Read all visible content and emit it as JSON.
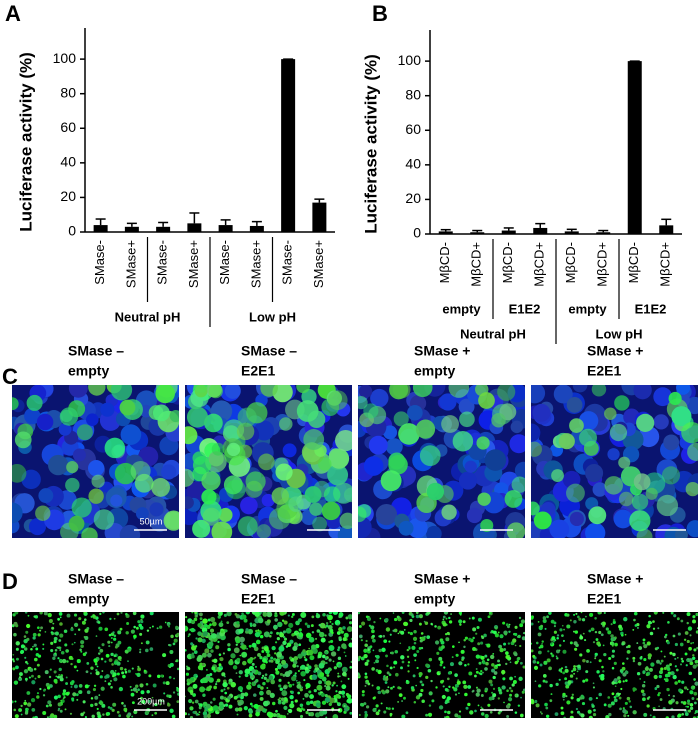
{
  "chart_data": [
    {
      "type": "bar",
      "panel": "A",
      "y_label": "Luciferase activity (%)",
      "categories": [
        "SMase-",
        "SMase+",
        "SMase-",
        "SMase+",
        "SMase-",
        "SMase+",
        "SMase-",
        "SMase+"
      ],
      "values": [
        4,
        3,
        3,
        5,
        4,
        3.5,
        100,
        17
      ],
      "errors": [
        3.5,
        2,
        2.5,
        6,
        3,
        2.5,
        0,
        2
      ],
      "groups": [
        "Neutral pH",
        "Low pH"
      ],
      "color": "#000000",
      "ylim": [
        0,
        118
      ],
      "yticks": [
        0,
        20,
        40,
        60,
        80,
        100
      ]
    },
    {
      "type": "bar",
      "panel": "B",
      "y_label": "Luciferase activity (%)",
      "categories": [
        "MβCD-",
        "MβCD+",
        "MβCD-",
        "MβCD+",
        "MβCD-",
        "MβCD+",
        "MβCD-",
        "MβCD+"
      ],
      "values": [
        1.5,
        1,
        2,
        3.5,
        1.5,
        1,
        100,
        5
      ],
      "errors": [
        1,
        1,
        1.5,
        2.5,
        1.2,
        1,
        0,
        3.5
      ],
      "subgroups": [
        "empty",
        "E1E2",
        "empty",
        "E1E2"
      ],
      "groups": [
        "Neutral pH",
        "Low pH"
      ],
      "color": "#000000",
      "ylim": [
        0,
        118
      ],
      "yticks": [
        0,
        20,
        40,
        60,
        80,
        100
      ]
    }
  ],
  "panels": [
    {
      "label": "C",
      "images": [
        {
          "caption": [
            "SMase –",
            "empty"
          ],
          "scale_bar": "50µm"
        },
        {
          "caption": [
            "SMase –",
            "E2E1"
          ]
        },
        {
          "caption": [
            "SMase +",
            "empty"
          ]
        },
        {
          "caption": [
            "SMase +",
            "E2E1"
          ]
        }
      ]
    },
    {
      "label": "D",
      "images": [
        {
          "caption": [
            "SMase –",
            "empty"
          ],
          "scale_bar": "200µm"
        },
        {
          "caption": [
            "SMase –",
            "E2E1"
          ]
        },
        {
          "caption": [
            "SMase +",
            "empty"
          ]
        },
        {
          "caption": [
            "SMase +",
            "E2E1"
          ]
        }
      ]
    }
  ]
}
